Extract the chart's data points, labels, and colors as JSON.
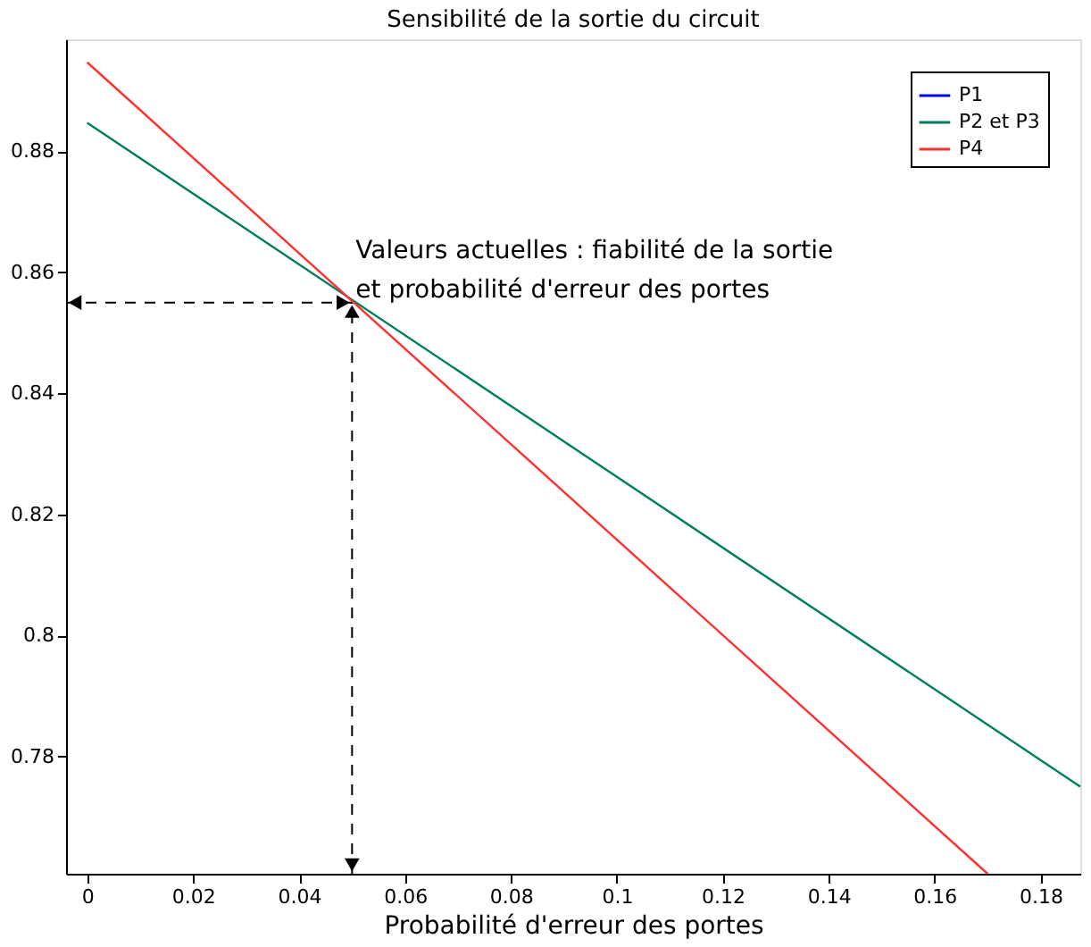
{
  "chart_data": {
    "type": "line",
    "title": "Sensibilité de la sortie du circuit",
    "xlabel": "Probabilité d'erreur des portes",
    "xlim": [
      -0.004,
      0.1875
    ],
    "ylim": [
      0.7606,
      0.8985
    ],
    "xticks": [
      0,
      0.02,
      0.04,
      0.06,
      0.08,
      0.1,
      0.12,
      0.14,
      0.16,
      0.18
    ],
    "yticks": [
      0.78,
      0.8,
      0.82,
      0.84,
      0.86,
      0.88
    ],
    "series": [
      {
        "name": "P1",
        "color": "#0000ff"
      },
      {
        "name": "P2 et P3",
        "color": "#007f5f",
        "x": [
          0,
          0.1875
        ],
        "values": [
          0.8847,
          0.775
        ]
      },
      {
        "name": "P4",
        "color": "#ff3030",
        "x": [
          0,
          0.17
        ],
        "values": [
          0.8947,
          0.7606
        ]
      }
    ],
    "annotations": [
      {
        "text": "Valeurs actuelles : fiabilité de la sortie\net probabilité d'erreur des portes",
        "x": 0.05,
        "y": 0.855
      }
    ],
    "legend": "top right",
    "grid": false,
    "marker": "none",
    "line_style": "solid"
  }
}
